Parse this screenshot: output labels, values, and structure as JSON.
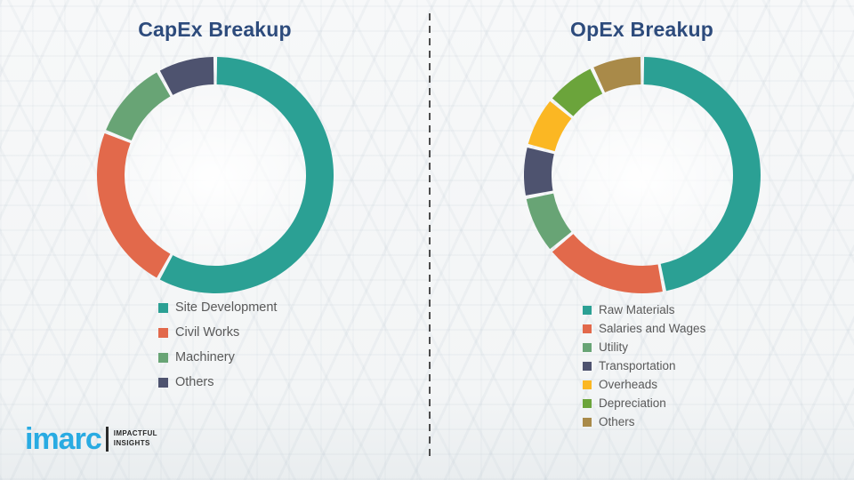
{
  "page": {
    "background_color": "#f3f5f6",
    "divider": {
      "style": "dashed-vertical",
      "color": "#4d4d4d"
    }
  },
  "logo": {
    "brand": "imarc",
    "brand_color": "#29abe2",
    "tagline_line1": "IMPACTFUL",
    "tagline_line2": "INSIGHTS"
  },
  "legend_text_color": "#595959",
  "title_color": "#2d4b7c",
  "chart_data": [
    {
      "type": "pie",
      "donut": true,
      "title": "CapEx Breakup",
      "start_angle_deg": 0,
      "direction": "clockwise",
      "legend_position": "below-left",
      "labels": [
        "Site Development",
        "Civil Works",
        "Machinery",
        "Others"
      ],
      "values": [
        58,
        23,
        11,
        8
      ],
      "unit": "percent",
      "colors": [
        "#2ba094",
        "#e2694b",
        "#68a475",
        "#4e536f"
      ]
    },
    {
      "type": "pie",
      "donut": true,
      "title": "OpEx Breakup",
      "start_angle_deg": 0,
      "direction": "clockwise",
      "legend_position": "below-left",
      "labels": [
        "Raw Materials",
        "Salaries and Wages",
        "Utility",
        "Transportation",
        "Overheads",
        "Depreciation",
        "Others"
      ],
      "values": [
        47,
        17,
        8,
        7,
        7,
        7,
        7
      ],
      "unit": "percent",
      "colors": [
        "#2ba094",
        "#e2694b",
        "#68a475",
        "#4e536f",
        "#fbb723",
        "#6ba43b",
        "#a98a49"
      ]
    }
  ]
}
